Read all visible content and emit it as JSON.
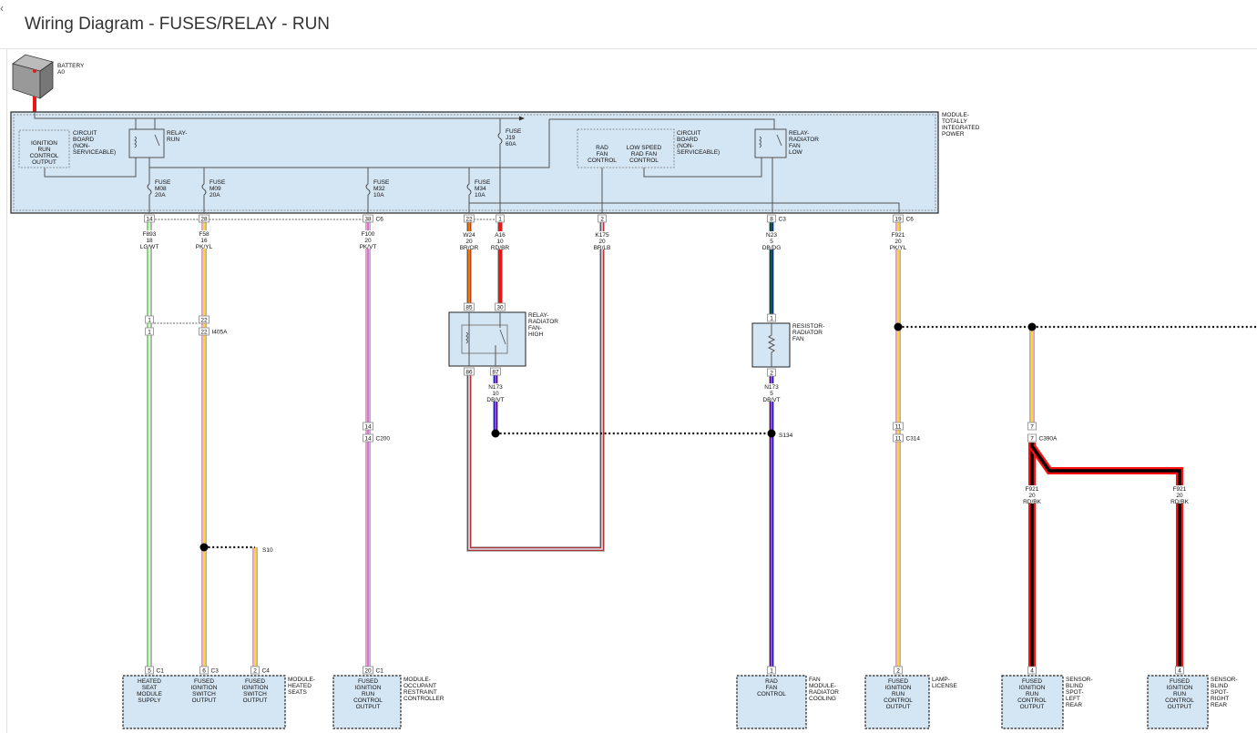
{
  "title": "Wiring Diagram - FUSES/RELAY - RUN",
  "back_icon": "chevron-left-icon",
  "battery": {
    "label": [
      "BATTERY",
      "A0"
    ]
  },
  "module_tip": {
    "label": [
      "MODULE-",
      "TOTALLY",
      "INTEGRATED",
      "POWER"
    ]
  },
  "circuit_board_left": {
    "label": [
      "CIRCUIT",
      "BOARD",
      "(NON-",
      "SERVICEABLE)"
    ],
    "inner": [
      "IGNITION",
      "RUN",
      "CONTROL",
      "OUTPUT"
    ]
  },
  "circuit_board_right": {
    "label": [
      "CIRCUIT",
      "BOARD",
      "(NON-",
      "SERVICEABLE)"
    ],
    "rad_fan_control": [
      "RAD",
      "FAN",
      "CONTROL"
    ],
    "low_speed": [
      "LOW SPEED",
      "RAD FAN",
      "CONTROL"
    ]
  },
  "relay_run": {
    "label": [
      "RELAY-",
      "RUN"
    ]
  },
  "relay_low": {
    "label": [
      "RELAY-",
      "RADIATOR",
      "FAN",
      "LOW"
    ]
  },
  "relay_high": {
    "label": [
      "RELAY-",
      "RADIATOR",
      "FAN-",
      "HIGH"
    ]
  },
  "resistor": {
    "label": [
      "RESISTOR-",
      "RADIATOR",
      "FAN"
    ]
  },
  "fuses": [
    {
      "label": [
        "FUSE",
        "M08",
        "20A"
      ]
    },
    {
      "label": [
        "FUSE",
        "M09",
        "20A"
      ]
    },
    {
      "label": [
        "FUSE",
        "M32",
        "10A"
      ]
    },
    {
      "label": [
        "FUSE",
        "M34",
        "10A"
      ]
    },
    {
      "label": [
        "FUSE",
        "J19",
        "60A"
      ]
    }
  ],
  "wire_colors": {
    "LG/WT": [
      "#86d97a",
      "#ffffff"
    ],
    "PK/YL": [
      "#f2a6c6",
      "#ffe600"
    ],
    "PK/VT": [
      "#f4a2d2",
      "#c070e0"
    ],
    "BR/OR": [
      "#b8401c",
      "#ff8c00"
    ],
    "RD/BR": [
      "#e81818",
      "#e81818"
    ],
    "BR/LB": [
      "#b23434",
      "#d8e6f4"
    ],
    "DB/VT": [
      "#1a1aa0",
      "#c050ff"
    ],
    "DB/DG": [
      "#102a80",
      "#0a6a3a"
    ],
    "RD/BK": [
      "#ff1010",
      "#000000"
    ]
  },
  "connectors": [
    {
      "pin": "14"
    },
    {
      "pin": "28"
    },
    {
      "pin": "38",
      "name": "C6"
    },
    {
      "pin": "22"
    },
    {
      "pin": "1"
    },
    {
      "pin": "2"
    },
    {
      "pin": "8",
      "name": "C3"
    },
    {
      "pin": "19",
      "name": "C6"
    },
    {
      "pin": "1"
    },
    {
      "pin": "1"
    },
    {
      "pin": "22"
    },
    {
      "pin": "22",
      "name": "I405A"
    },
    {
      "pin": "85"
    },
    {
      "pin": "30"
    },
    {
      "pin": "86"
    },
    {
      "pin": "87"
    },
    {
      "pin": "1"
    },
    {
      "pin": "2"
    },
    {
      "pin": "14"
    },
    {
      "pin": "14",
      "name": "C200"
    },
    {
      "pin": "11"
    },
    {
      "pin": "11",
      "name": "C314"
    },
    {
      "pin": "7"
    },
    {
      "pin": "7",
      "name": "C390A"
    },
    {
      "pin": "5",
      "name": "C1"
    },
    {
      "pin": "6",
      "name": "C3"
    },
    {
      "pin": "2",
      "name": "C4"
    },
    {
      "pin": "20",
      "name": "C1"
    },
    {
      "pin": "1"
    },
    {
      "pin": "2"
    },
    {
      "pin": "4"
    },
    {
      "pin": "4"
    }
  ],
  "circuits": [
    {
      "lines": [
        "F893",
        "18",
        "LG/WT"
      ]
    },
    {
      "lines": [
        "F58",
        "16",
        "PK/YL"
      ]
    },
    {
      "lines": [
        "F100",
        "20",
        "PK/VT"
      ]
    },
    {
      "lines": [
        "W24",
        "20",
        "BR/OR"
      ]
    },
    {
      "lines": [
        "A16",
        "10",
        "RD/BR"
      ]
    },
    {
      "lines": [
        "K175",
        "20",
        "BR/LB"
      ]
    },
    {
      "lines": [
        "N23",
        "5",
        "DB/DG"
      ]
    },
    {
      "lines": [
        "F921",
        "20",
        "PK/YL"
      ]
    },
    {
      "lines": [
        "N173",
        "10",
        "DB/VT"
      ]
    },
    {
      "lines": [
        "N173",
        "5",
        "DB/VT"
      ]
    },
    {
      "lines": [
        "F921",
        "20",
        "RD/BK"
      ]
    },
    {
      "lines": [
        "F921",
        "20",
        "RD/BK"
      ]
    }
  ],
  "splices": [
    "S10",
    "S134"
  ],
  "components": [
    {
      "name": [
        "MODULE-",
        "HEATED",
        "SEATS"
      ],
      "pins": [
        [
          "HEATED",
          "SEAT",
          "MODULE",
          "SUPPLY"
        ],
        [
          "FUSED",
          "IGNITION",
          "SWITCH",
          "OUTPUT"
        ],
        [
          "FUSED",
          "IGNITION",
          "SWITCH",
          "OUTPUT"
        ]
      ]
    },
    {
      "name": [
        "MODULE-",
        "OCCUPANT",
        "RESTRAINT",
        "CONTROLLER"
      ],
      "pins": [
        [
          "FUSED",
          "IGNITION",
          "RUN",
          "CONTROL",
          "OUTPUT"
        ]
      ]
    },
    {
      "name": [
        "FAN",
        "MODULE-",
        "RADIATOR",
        "COOLING"
      ],
      "pins": [
        [
          "RAD",
          "FAN",
          "CONTROL"
        ]
      ]
    },
    {
      "name": [
        "LAMP-",
        "LICENSE"
      ],
      "pins": [
        [
          "FUSED",
          "IGNITION",
          "RUN",
          "CONTROL",
          "OUTPUT"
        ]
      ]
    },
    {
      "name": [
        "SENSOR-",
        "BLIND",
        "SPOT-",
        "LEFT",
        "REAR"
      ],
      "pins": [
        [
          "FUSED",
          "IGNITION",
          "RUN",
          "CONTROL",
          "OUTPUT"
        ]
      ]
    },
    {
      "name": [
        "SENSOR-",
        "BLIND",
        "SPOT-",
        "RIGHT",
        "REAR"
      ],
      "pins": [
        [
          "FUSED",
          "IGNITION",
          "RUN",
          "CONTROL",
          "OUTPUT"
        ]
      ]
    }
  ]
}
